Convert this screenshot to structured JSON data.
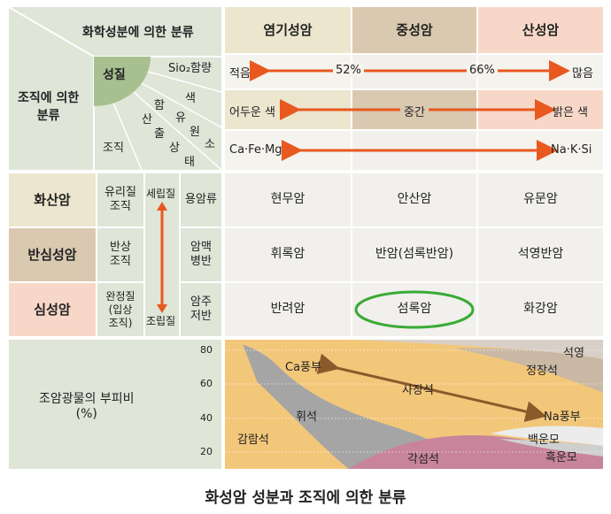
{
  "header": {
    "corner_top": "화학성분에 의한 분류",
    "corner_left": "조직에 의한\n분류",
    "seongjil": "성질",
    "sio2": "Sio₂함량",
    "color_vertical": "색",
    "jojik": "조직",
    "chars_diag": [
      "산",
      "출",
      "상",
      "태",
      "함",
      "유",
      "원",
      "소"
    ],
    "columns": [
      "염기성암",
      "중성암",
      "산성암"
    ]
  },
  "property_rows": {
    "sio2": {
      "left": "적음",
      "mid1": "52%",
      "mid2": "66%",
      "right": "많음"
    },
    "color": {
      "left": "어두운 색",
      "mid": "중간",
      "right": "밝은 색"
    },
    "elements": {
      "left": "Ca·Fe·Mg",
      "right": "Na·K·Si"
    }
  },
  "rows": [
    {
      "name": "화산암",
      "texture": "유리질\n조직",
      "mode": "용암류",
      "cells": [
        "현무암",
        "안산암",
        "유문암"
      ]
    },
    {
      "name": "반심성암",
      "texture": "반상\n조직",
      "mode": "암맥\n병반",
      "cells": [
        "휘록암",
        "반암(섬록반암)",
        "석영반암"
      ]
    },
    {
      "name": "심성암",
      "texture": "완정질\n(입상\n조직)",
      "mode": "암주\n저반",
      "cells": [
        "반려암",
        "섬록암",
        "화강암"
      ]
    }
  ],
  "grain": {
    "top": "세립질",
    "bottom": "조립질"
  },
  "mineral": {
    "label": "조암광물의 부피비\n(%)",
    "ticks": [
      "80",
      "60",
      "40",
      "20"
    ],
    "regions": [
      "Ca풍부",
      "사장석",
      "Na풍부",
      "휘석",
      "감람석",
      "각섬석",
      "석영",
      "정장석",
      "백운모",
      "흑운모"
    ]
  },
  "colors": {
    "green": "#dfe5d7",
    "beige": "#ece6cf",
    "tan": "#d9c9b0",
    "pink": "#f7d8c8",
    "arrow": "#e8581f",
    "highlight": "#3aaa35"
  },
  "caption": "화성암 성분과 조직에 의한 분류"
}
